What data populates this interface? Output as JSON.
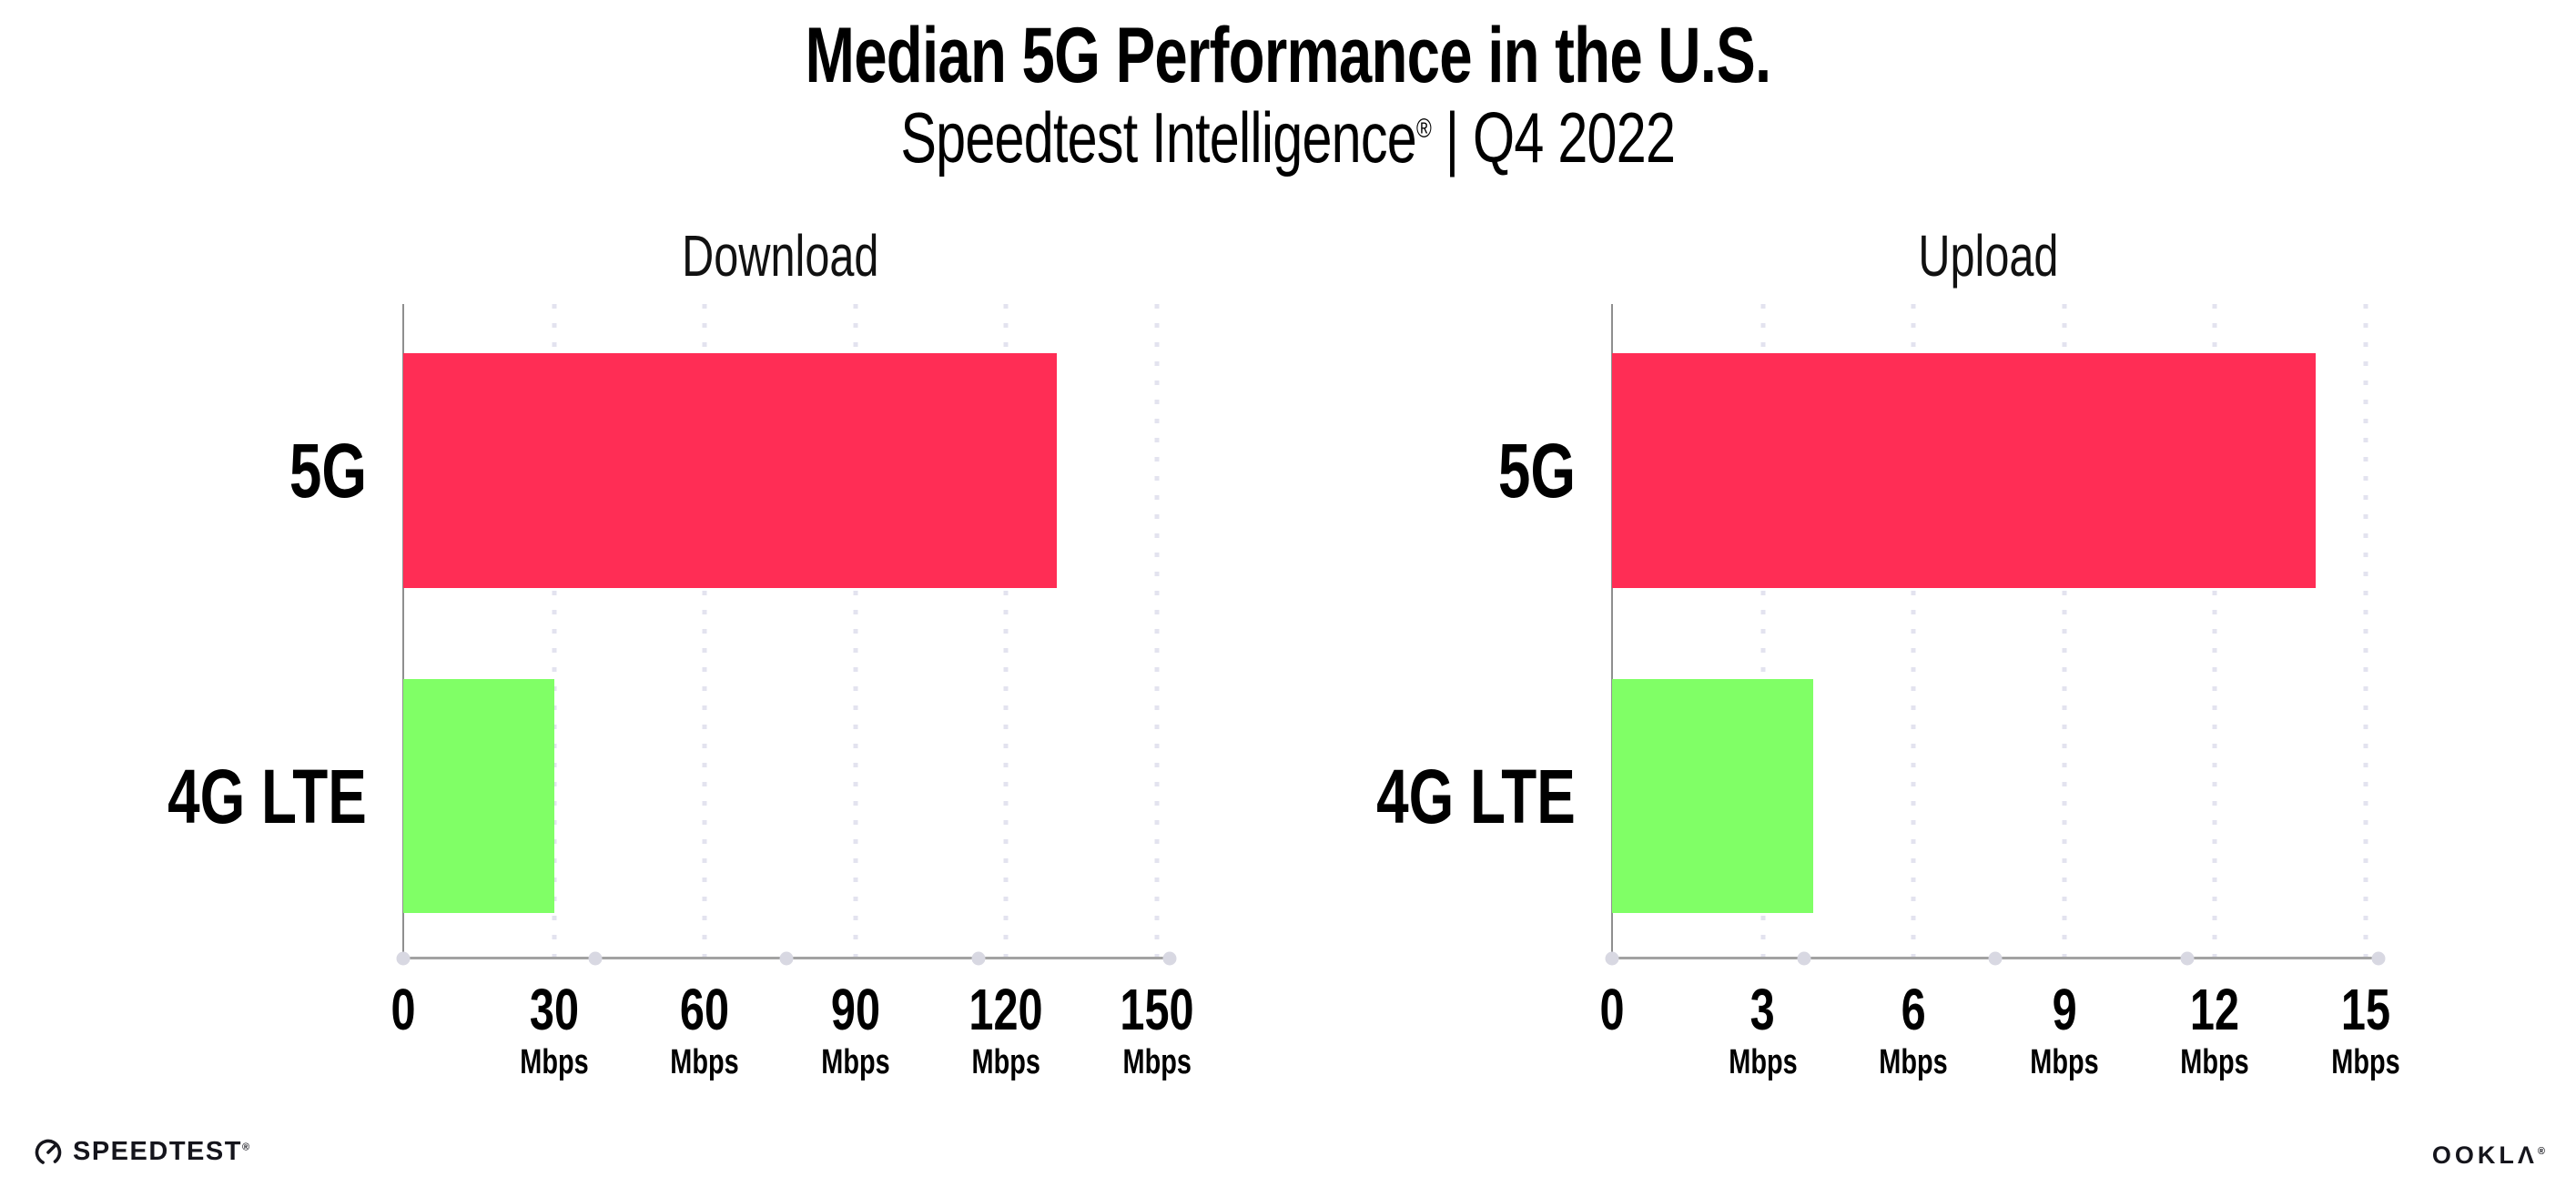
{
  "page": {
    "title": "Median 5G Performance in the U.S.",
    "subtitle_brand": "Speedtest Intelligence",
    "subtitle_reg": "®",
    "subtitle_rest": " | Q4 2022"
  },
  "chart_data": [
    {
      "type": "bar",
      "orientation": "horizontal",
      "title": "Download",
      "categories": [
        "5G",
        "4G LTE"
      ],
      "values": [
        130,
        30
      ],
      "unit": "Mbps",
      "xlim": [
        0,
        150
      ],
      "xticks": [
        "0",
        "30",
        "60",
        "90",
        "120",
        "150"
      ],
      "tick_unit": "Mbps",
      "grid": "dotted-vertical",
      "legend": "none",
      "bar_colors": [
        "#ff2d55",
        "#80ff66"
      ]
    },
    {
      "type": "bar",
      "orientation": "horizontal",
      "title": "Upload",
      "categories": [
        "5G",
        "4G LTE"
      ],
      "values": [
        14,
        4
      ],
      "unit": "Mbps",
      "xlim": [
        0,
        15
      ],
      "xticks": [
        "0",
        "3",
        "6",
        "9",
        "12",
        "15"
      ],
      "tick_unit": "Mbps",
      "grid": "dotted-vertical",
      "legend": "none",
      "bar_colors": [
        "#ff2d55",
        "#80ff66"
      ]
    }
  ],
  "footer": {
    "speedtest_label": "SPEEDTEST",
    "speedtest_reg": "®",
    "ookla_label": "OOKLΛ",
    "ookla_reg": "®"
  },
  "colors": {
    "bar_5g": "#ff2d55",
    "bar_4g_lte": "#80ff66",
    "axis": "#a2a2a2",
    "grid_dot": "#e3e3ef"
  }
}
